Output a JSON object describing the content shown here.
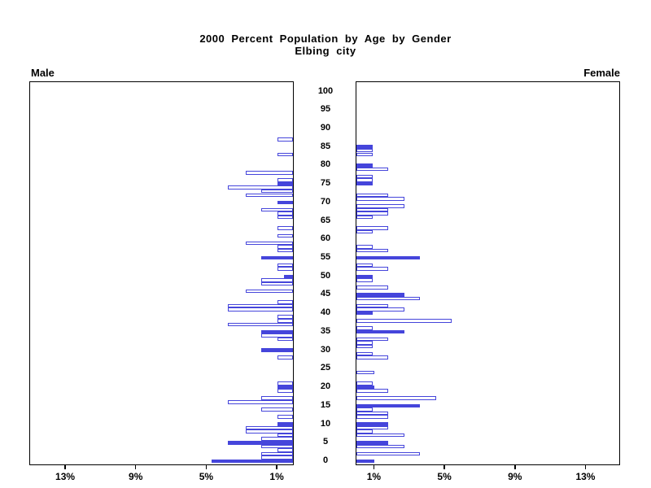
{
  "title": {
    "line1": "2000 Percent Population by Age by Gender",
    "line2": "Elbing city"
  },
  "panels": {
    "left_label": "Male",
    "right_label": "Female"
  },
  "colors": {
    "bar_blue": "#4545DB",
    "axis_black": "#000000",
    "background": "#FFFFFF"
  },
  "chart_data": {
    "type": "bar",
    "subtype": "population-pyramid",
    "title": "2000 Percent Population by Age by Gender",
    "subtitle": "Elbing city",
    "unit": "percent",
    "orientation": "horizontal, male bars extend left, female bars extend right",
    "x_axis": {
      "tick_values": [
        1,
        5,
        9,
        13
      ],
      "male_tick_labels": [
        "13%",
        "9%",
        "5%",
        "1%"
      ],
      "female_tick_labels": [
        "1%",
        "5%",
        "9%",
        "13%"
      ],
      "max_percent": 15
    },
    "y_axis": {
      "age_min": 0,
      "age_max": 100,
      "tick_step": 5,
      "age_tick_labels": [
        "100",
        "95",
        "90",
        "85",
        "80",
        "75",
        "70",
        "65",
        "60",
        "55",
        "50",
        "45",
        "40",
        "35",
        "30",
        "25",
        "20",
        "15",
        "10",
        "5",
        "0"
      ]
    },
    "filled_bar_rule": "bars at ages divisible by 5 are solid filled; other ages are hollow outlines",
    "series": [
      {
        "name": "Male",
        "values_by_age": [
          4.6,
          1.8,
          1.8,
          0.9,
          1.8,
          3.7,
          1.8,
          0.9,
          2.7,
          2.7,
          0.9,
          0,
          0.9,
          0,
          1.8,
          0,
          3.7,
          1.8,
          0,
          0.9,
          0.9,
          0.9,
          0,
          0,
          0,
          0,
          0,
          0,
          0.9,
          0,
          1.8,
          0,
          0,
          0.9,
          1.8,
          1.8,
          0,
          3.7,
          0.9,
          0.9,
          0,
          3.7,
          3.7,
          0.9,
          0,
          0,
          2.7,
          0,
          1.8,
          1.8,
          0.5,
          0,
          0.9,
          0.9,
          0,
          1.8,
          0,
          0.9,
          0.9,
          2.7,
          0,
          0.9,
          0,
          0.9,
          0,
          0,
          0.9,
          0.9,
          1.8,
          0,
          0.9,
          0,
          2.7,
          1.8,
          3.7,
          0.9,
          0.9,
          0,
          2.7,
          0,
          0,
          0,
          0,
          0.9,
          0,
          0,
          0,
          0.9,
          0,
          0,
          0,
          0,
          0,
          0,
          0,
          0,
          0,
          0,
          0,
          0,
          0
        ]
      },
      {
        "name": "Female",
        "values_by_age": [
          1.0,
          0,
          3.6,
          0,
          2.7,
          1.8,
          0,
          2.7,
          0.9,
          1.8,
          1.8,
          0,
          1.8,
          1.8,
          0.9,
          3.6,
          0,
          4.5,
          0,
          1.8,
          1.0,
          0.9,
          0,
          0,
          1.0,
          0,
          0,
          0,
          1.8,
          0.9,
          0,
          0.9,
          0.9,
          1.8,
          0,
          2.7,
          0.9,
          0,
          5.4,
          0,
          0.9,
          2.7,
          1.8,
          0,
          3.6,
          2.7,
          0,
          1.8,
          0,
          0.9,
          0.9,
          0,
          1.8,
          0.9,
          0,
          3.6,
          0,
          1.8,
          0.9,
          0,
          0,
          0,
          0.9,
          1.8,
          0,
          0,
          0.9,
          1.8,
          1.8,
          2.7,
          0,
          2.7,
          1.8,
          0,
          0,
          0.9,
          0.9,
          0.9,
          0,
          1.8,
          0.9,
          0,
          0,
          0.9,
          0.9,
          0.9,
          0,
          0,
          0,
          0,
          0,
          0,
          0,
          0,
          0,
          0,
          0,
          0,
          0,
          0,
          0
        ]
      }
    ]
  }
}
